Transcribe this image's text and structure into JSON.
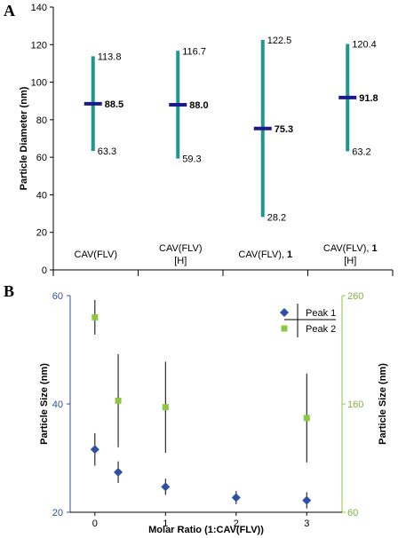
{
  "chart_data": [
    {
      "panel": "A",
      "type": "range_bar",
      "ylabel": "Particle Diameter (nm)",
      "ylim": [
        0,
        140
      ],
      "yticks": [
        0,
        20,
        40,
        60,
        80,
        100,
        120,
        140
      ],
      "categories": [
        {
          "line1": "CAV(FLV)",
          "line1_bold": "",
          "line2": ""
        },
        {
          "line1": "CAV(FLV)",
          "line1_bold": "",
          "line2": "[H]"
        },
        {
          "line1": "CAV(FLV), ",
          "line1_bold": "1",
          "line2": ""
        },
        {
          "line1": "CAV(FLV), ",
          "line1_bold": "1",
          "line2": "[H]"
        }
      ],
      "low": [
        63.3,
        59.3,
        28.2,
        63.2
      ],
      "high": [
        113.8,
        116.7,
        122.5,
        120.4
      ],
      "mean": [
        88.5,
        88.0,
        75.3,
        91.8
      ],
      "mean_labels": [
        "88.5",
        "88.0",
        "75.3",
        "91.8"
      ],
      "low_labels": [
        "63.3",
        "59.3",
        "28.2",
        "63.2"
      ],
      "high_labels": [
        "113.8",
        "116.7",
        "122.5",
        "120.4"
      ],
      "colors": {
        "range": "#1f9690",
        "mean": "#1a1a8c"
      }
    },
    {
      "panel": "B",
      "type": "scatter",
      "xlabel": "Molar Ratio (1:CAV(FLV))",
      "xlim": [
        -0.35,
        3.5
      ],
      "xticks": [
        0,
        1,
        2,
        3
      ],
      "ylabel_left": "Particle Size (nm)",
      "ylim_left": [
        20,
        60
      ],
      "yticks_left": [
        20,
        40,
        60
      ],
      "ylabel_right": "Particle Size (nm)",
      "ylim_right": [
        60,
        260
      ],
      "yticks_right": [
        60,
        160,
        260
      ],
      "legend_position": "top-right",
      "series": [
        {
          "name": "Peak 1",
          "axis": "left",
          "color": "#2f4fa0",
          "marker": "diamond",
          "x": [
            0,
            0.33,
            1,
            2,
            3
          ],
          "y": [
            31.6,
            27.4,
            24.7,
            22.7,
            22.2
          ],
          "err": [
            3.0,
            2.0,
            1.5,
            1.2,
            1.5
          ]
        },
        {
          "name": "Peak 2",
          "axis": "right",
          "color": "#8dc63f",
          "marker": "square",
          "x": [
            0,
            0.33,
            1,
            2,
            3
          ],
          "y": [
            240,
            163,
            157,
            null,
            147
          ],
          "err": [
            16,
            43,
            42,
            null,
            41
          ]
        }
      ]
    }
  ],
  "labels": {
    "panel_a": "A",
    "panel_b": "B"
  }
}
